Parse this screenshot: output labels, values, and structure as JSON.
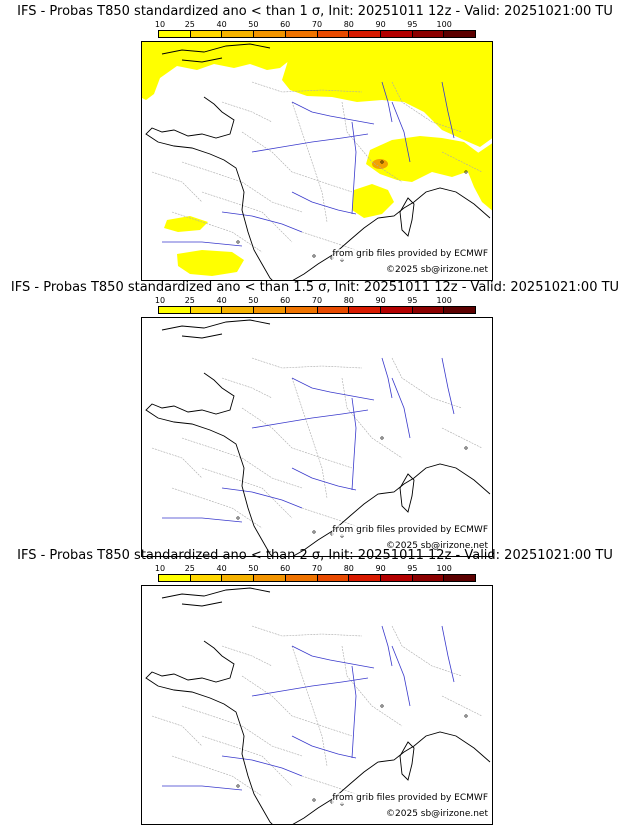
{
  "legend": {
    "ticks": [
      "10",
      "25",
      "40",
      "50",
      "60",
      "70",
      "80",
      "90",
      "95",
      "100"
    ],
    "colors": [
      "#ffff00",
      "#ffd700",
      "#f5b200",
      "#f29400",
      "#ef7300",
      "#e84a00",
      "#d81a00",
      "#b30000",
      "#8b0000",
      "#5c0000"
    ]
  },
  "panels": [
    {
      "title": "IFS - Probas T850  standardized ano < than 1 σ, Init: 20251011 12z - Valid: 20251021:00 TU",
      "source": "from grib files provided by ECMWF",
      "copyright": "©2025 sb@irizone.net",
      "probability_fill": "#ffff00",
      "has_probability_areas": true
    },
    {
      "title": "IFS - Probas T850  standardized ano < than 1.5 σ, Init: 20251011 12z - Valid: 20251021:00 TU",
      "source": "from grib files provided by ECMWF",
      "copyright": "©2025 sb@irizone.net",
      "has_probability_areas": false
    },
    {
      "title": "IFS - Probas T850  standardized ano < than 2 σ, Init: 20251011 12z - Valid: 20251021:00 TU",
      "source": "from grib files provided by ECMWF",
      "copyright": "©2025 sb@irizone.net",
      "has_probability_areas": false
    }
  ]
}
